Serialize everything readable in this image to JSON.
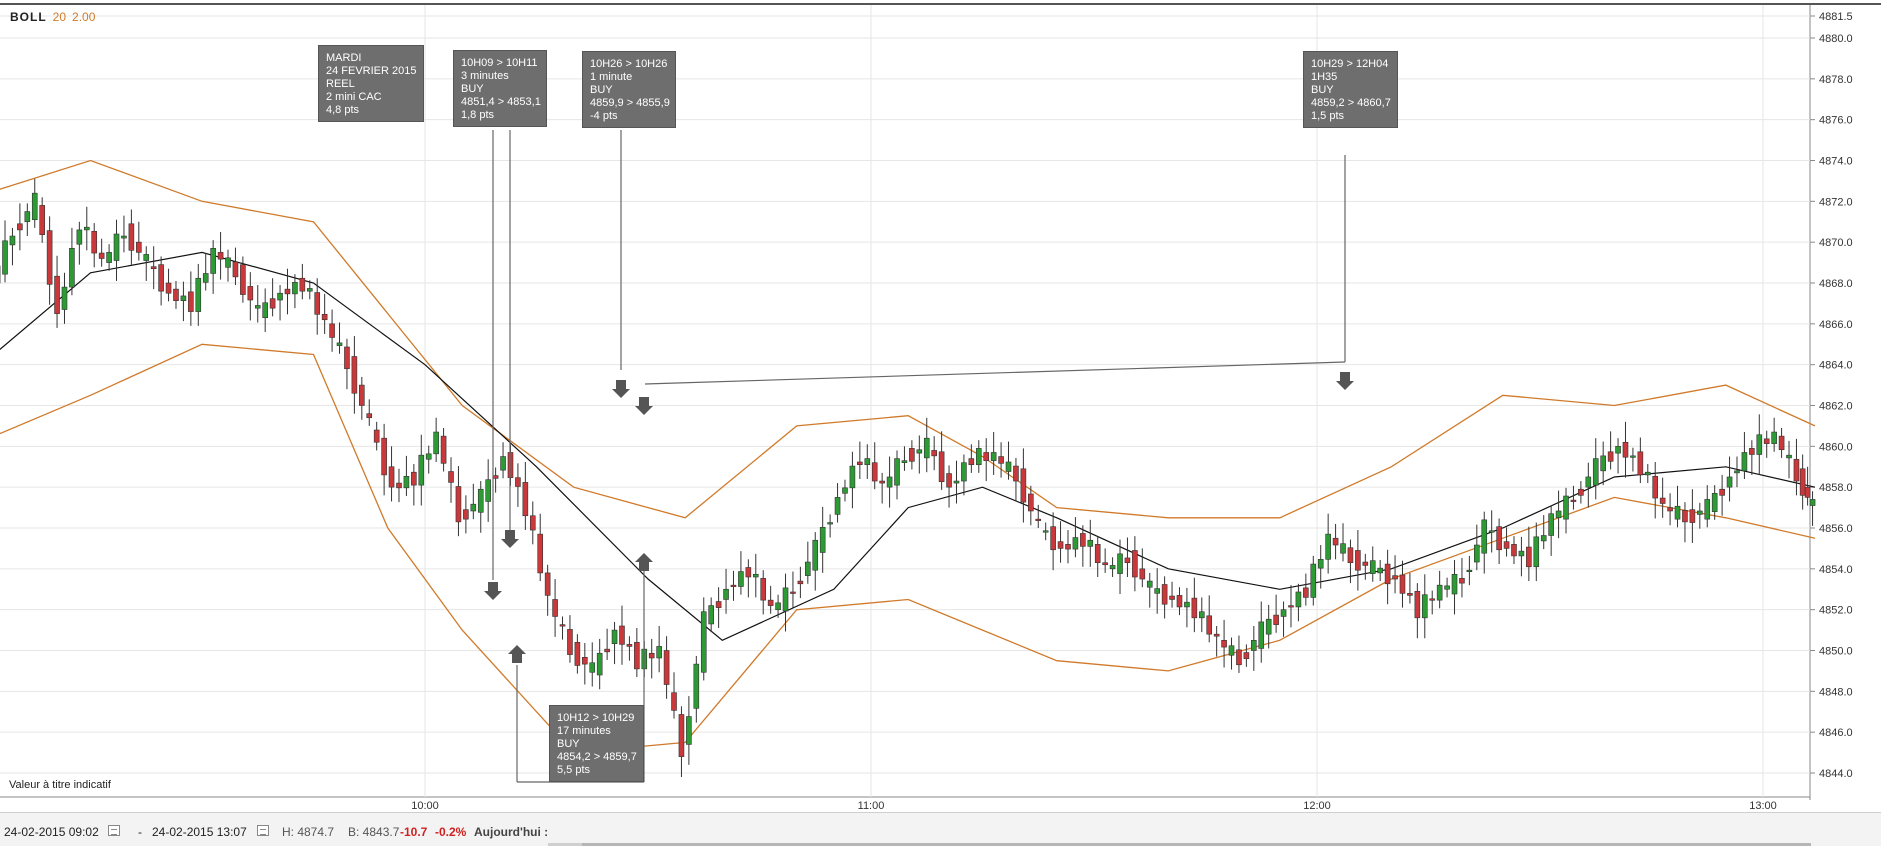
{
  "indicator": {
    "name": "BOLL",
    "period": "20",
    "deviation": "2.00"
  },
  "disclaimer": "Valeur à titre indicatif",
  "annotations": [
    {
      "id": "session",
      "lines": [
        "MARDI",
        "24 FEVRIER 2015",
        "REEL",
        "2 mini CAC",
        "4,8 pts"
      ]
    },
    {
      "id": "trade1",
      "lines": [
        "10H09 > 10H11",
        "3 minutes",
        "BUY",
        "4851,4 > 4853,1",
        "1,8 pts"
      ]
    },
    {
      "id": "trade2",
      "lines": [
        "10H26 > 10H26",
        "1 minute",
        "BUY",
        "4859,9 > 4855,9",
        "-4 pts"
      ]
    },
    {
      "id": "trade3",
      "lines": [
        "10H29 > 12H04",
        "1H35",
        "BUY",
        "4859,2 > 4860,7",
        "1,5 pts"
      ]
    },
    {
      "id": "trade4",
      "lines": [
        "10H12 > 10H29",
        "17 minutes",
        "BUY",
        "4854,2 > 4859,7",
        "5,5 pts"
      ]
    }
  ],
  "bottom_bar": {
    "start": "24-02-2015 09:02",
    "separator": "-",
    "end": "24-02-2015 13:07",
    "high": "H: 4874.7",
    "low": "B: 4843.7",
    "change": "-10.7",
    "change_pct": "-0.2%",
    "today": "Aujourd'hui :"
  },
  "colors": {
    "up": "#2e9a35",
    "down": "#c9383a",
    "band": "#d07a2a",
    "middle": "#111111",
    "grid": "#e6e6e6",
    "annotation": "#6e6e6e"
  },
  "chart_data": {
    "type": "candlestick",
    "title": "",
    "xlabel": "",
    "ylabel": "",
    "x_range": [
      "09:02",
      "13:07"
    ],
    "x_ticks": [
      "10:00",
      "11:00",
      "12:00",
      "13:00"
    ],
    "ylim": [
      4843.0,
      4881.5
    ],
    "y_ticks": [
      "4881.5",
      "4880.0",
      "4878.0",
      "4876.0",
      "4874.0",
      "4872.0",
      "4870.0",
      "4868.0",
      "4866.0",
      "4864.0",
      "4862.0",
      "4860.0",
      "4858.0",
      "4856.0",
      "4854.0",
      "4852.0",
      "4850.0",
      "4848.0",
      "4846.0",
      "4844.0"
    ],
    "grid": true,
    "series": [
      {
        "name": "Price",
        "close_points": [
          [
            "09:02",
            4868.0
          ],
          [
            "09:05",
            4870.5
          ],
          [
            "09:08",
            4872.0
          ],
          [
            "09:11",
            4866.5
          ],
          [
            "09:14",
            4871.0
          ],
          [
            "09:17",
            4869.0
          ],
          [
            "09:20",
            4870.5
          ],
          [
            "09:23",
            4869.0
          ],
          [
            "09:26",
            4867.5
          ],
          [
            "09:29",
            4867.0
          ],
          [
            "09:32",
            4869.5
          ],
          [
            "09:35",
            4868.5
          ],
          [
            "09:38",
            4866.5
          ],
          [
            "09:41",
            4867.5
          ],
          [
            "09:44",
            4868.0
          ],
          [
            "09:47",
            4866.0
          ],
          [
            "09:50",
            4864.0
          ],
          [
            "09:53",
            4861.0
          ],
          [
            "09:56",
            4858.0
          ],
          [
            "09:59",
            4858.5
          ],
          [
            "10:02",
            4860.5
          ],
          [
            "10:05",
            4856.5
          ],
          [
            "10:08",
            4857.5
          ],
          [
            "10:11",
            4859.5
          ],
          [
            "10:14",
            4857.0
          ],
          [
            "10:17",
            4852.5
          ],
          [
            "10:20",
            4850.0
          ],
          [
            "10:23",
            4849.0
          ],
          [
            "10:26",
            4851.0
          ],
          [
            "10:29",
            4849.5
          ],
          [
            "10:32",
            4850.0
          ],
          [
            "10:35",
            4845.0
          ],
          [
            "10:38",
            4851.5
          ],
          [
            "10:41",
            4853.0
          ],
          [
            "10:44",
            4854.0
          ],
          [
            "10:47",
            4852.0
          ],
          [
            "10:50",
            4853.0
          ],
          [
            "10:53",
            4855.0
          ],
          [
            "10:56",
            4857.5
          ],
          [
            "10:59",
            4859.5
          ],
          [
            "11:02",
            4858.0
          ],
          [
            "11:05",
            4859.5
          ],
          [
            "11:08",
            4860.0
          ],
          [
            "11:11",
            4858.0
          ],
          [
            "11:14",
            4859.5
          ],
          [
            "11:17",
            4859.5
          ],
          [
            "11:20",
            4858.5
          ],
          [
            "11:23",
            4856.0
          ],
          [
            "11:26",
            4855.0
          ],
          [
            "11:29",
            4855.5
          ],
          [
            "11:32",
            4854.0
          ],
          [
            "11:35",
            4854.5
          ],
          [
            "11:38",
            4853.0
          ],
          [
            "11:41",
            4852.5
          ],
          [
            "11:44",
            4852.0
          ],
          [
            "11:47",
            4850.5
          ],
          [
            "11:50",
            4849.5
          ],
          [
            "11:53",
            4851.0
          ],
          [
            "11:56",
            4852.0
          ],
          [
            "11:59",
            4853.0
          ],
          [
            "12:02",
            4855.5
          ],
          [
            "12:05",
            4854.5
          ],
          [
            "12:08",
            4854.0
          ],
          [
            "12:11",
            4853.5
          ],
          [
            "12:14",
            4852.0
          ],
          [
            "12:17",
            4853.0
          ],
          [
            "12:20",
            4853.5
          ],
          [
            "12:23",
            4856.0
          ],
          [
            "12:26",
            4855.0
          ],
          [
            "12:29",
            4854.5
          ],
          [
            "12:32",
            4856.5
          ],
          [
            "12:35",
            4857.5
          ],
          [
            "12:38",
            4859.0
          ],
          [
            "12:41",
            4860.0
          ],
          [
            "12:44",
            4859.0
          ],
          [
            "12:47",
            4857.0
          ],
          [
            "12:50",
            4856.5
          ],
          [
            "12:53",
            4857.0
          ],
          [
            "12:56",
            4858.5
          ],
          [
            "12:59",
            4860.0
          ],
          [
            "13:02",
            4860.5
          ],
          [
            "13:05",
            4858.5
          ],
          [
            "13:07",
            4857.0
          ]
        ]
      },
      {
        "name": "BOLL",
        "middle_points": [
          [
            "09:02",
            4864.5
          ],
          [
            "09:15",
            4868.5
          ],
          [
            "09:30",
            4869.5
          ],
          [
            "09:45",
            4868.0
          ],
          [
            "10:00",
            4864.0
          ],
          [
            "10:15",
            4859.0
          ],
          [
            "10:30",
            4853.5
          ],
          [
            "10:40",
            4850.5
          ],
          [
            "10:55",
            4853.0
          ],
          [
            "11:05",
            4857.0
          ],
          [
            "11:15",
            4858.0
          ],
          [
            "11:25",
            4856.5
          ],
          [
            "11:40",
            4854.0
          ],
          [
            "11:55",
            4853.0
          ],
          [
            "12:10",
            4854.0
          ],
          [
            "12:25",
            4856.0
          ],
          [
            "12:40",
            4858.5
          ],
          [
            "12:55",
            4859.0
          ],
          [
            "13:07",
            4858.0
          ]
        ]
      },
      {
        "name": "Upper",
        "upper_points": [
          [
            "09:02",
            4872.5
          ],
          [
            "09:15",
            4874.0
          ],
          [
            "09:30",
            4872.0
          ],
          [
            "09:45",
            4871.0
          ],
          [
            "09:55",
            4866.5
          ],
          [
            "10:05",
            4862.0
          ],
          [
            "10:20",
            4858.0
          ],
          [
            "10:35",
            4856.5
          ],
          [
            "10:50",
            4861.0
          ],
          [
            "11:05",
            4861.5
          ],
          [
            "11:15",
            4859.5
          ],
          [
            "11:25",
            4857.0
          ],
          [
            "11:40",
            4856.5
          ],
          [
            "11:55",
            4856.5
          ],
          [
            "12:10",
            4859.0
          ],
          [
            "12:25",
            4862.5
          ],
          [
            "12:40",
            4862.0
          ],
          [
            "12:55",
            4863.0
          ],
          [
            "13:07",
            4861.0
          ]
        ]
      },
      {
        "name": "Lower",
        "lower_points": [
          [
            "09:02",
            4860.5
          ],
          [
            "09:15",
            4862.5
          ],
          [
            "09:30",
            4865.0
          ],
          [
            "09:45",
            4864.5
          ],
          [
            "09:55",
            4856.0
          ],
          [
            "10:05",
            4851.0
          ],
          [
            "10:20",
            4845.0
          ],
          [
            "10:35",
            4845.5
          ],
          [
            "10:50",
            4852.0
          ],
          [
            "11:05",
            4852.5
          ],
          [
            "11:15",
            4851.0
          ],
          [
            "11:25",
            4849.5
          ],
          [
            "11:40",
            4849.0
          ],
          [
            "11:55",
            4850.5
          ],
          [
            "12:10",
            4853.5
          ],
          [
            "12:25",
            4855.5
          ],
          [
            "12:40",
            4857.5
          ],
          [
            "12:55",
            4856.5
          ],
          [
            "13:07",
            4855.5
          ]
        ]
      }
    ]
  }
}
